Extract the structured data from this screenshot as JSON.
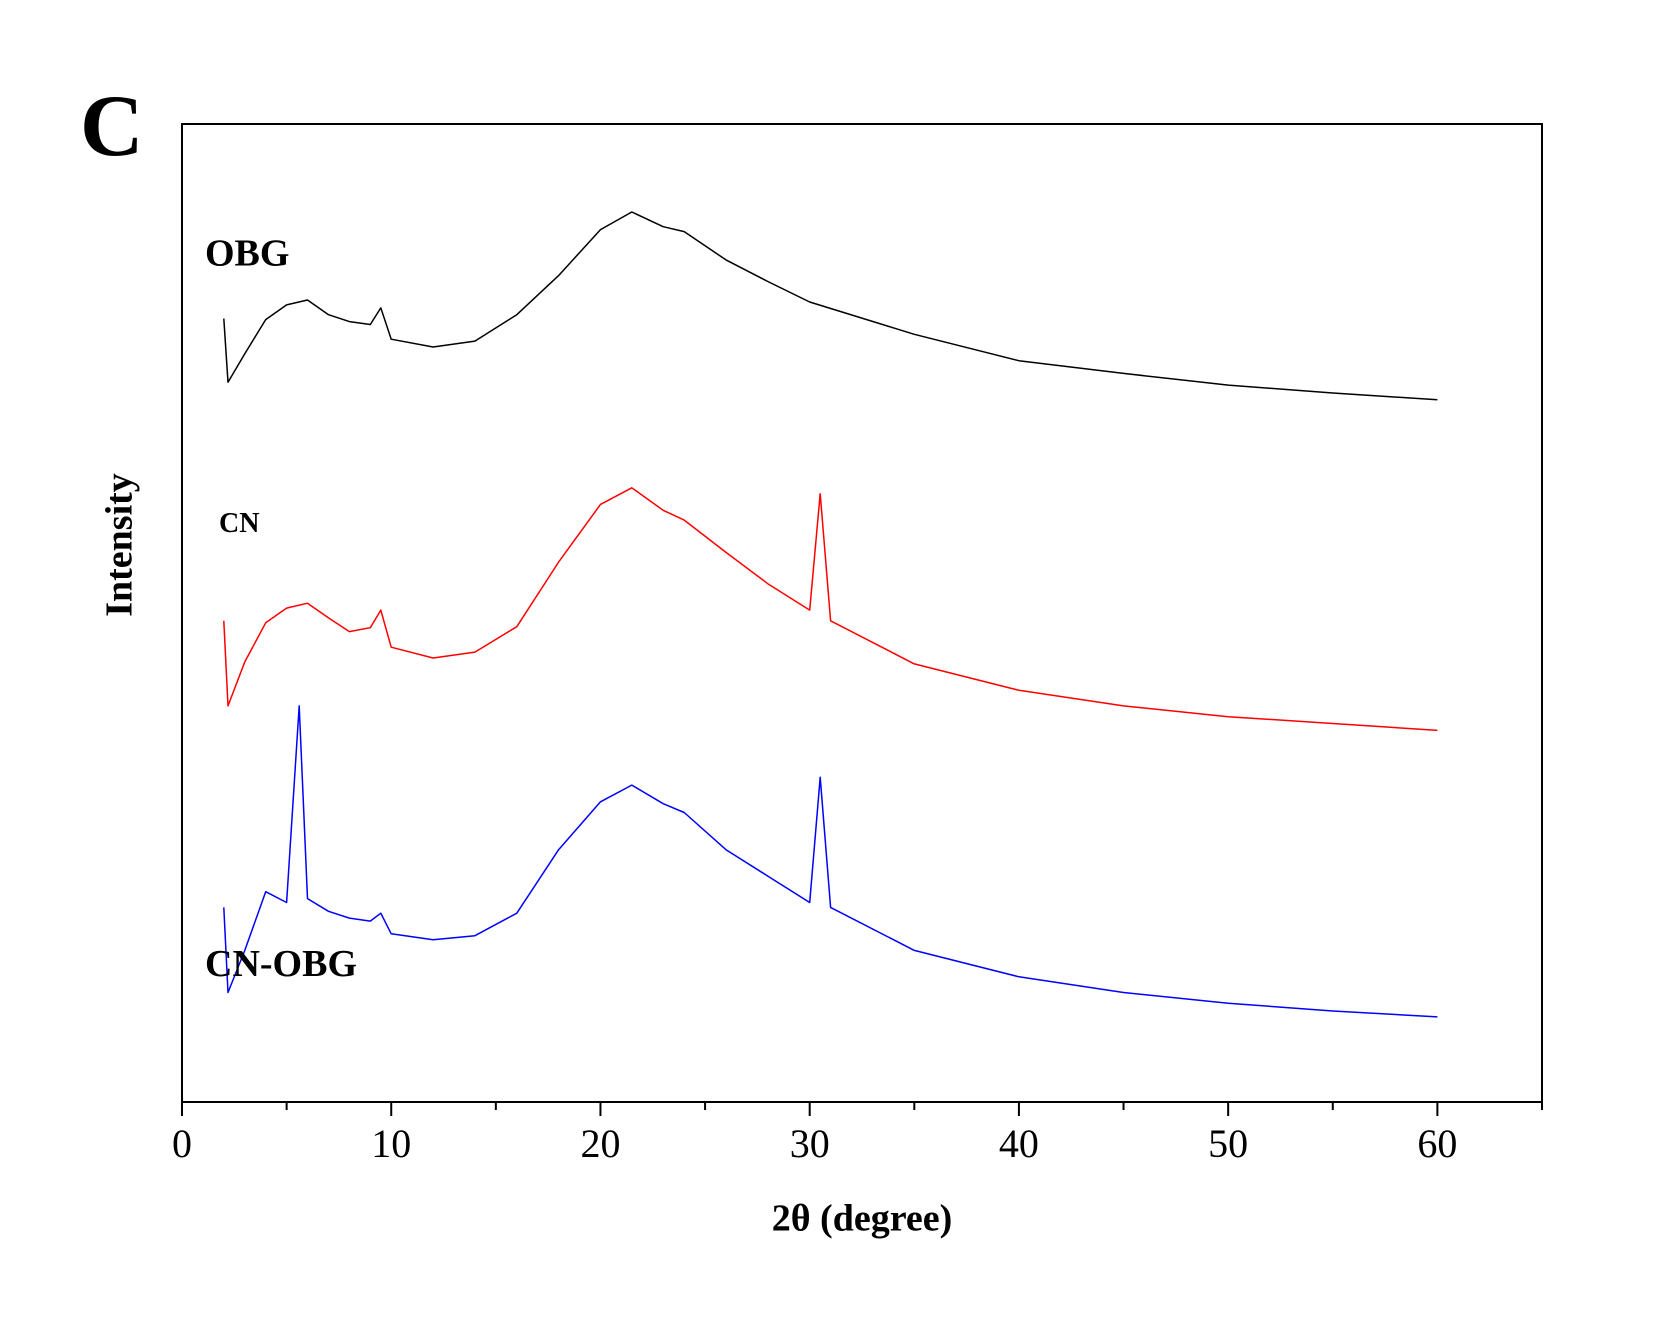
{
  "chart_data": {
    "type": "line",
    "panel_label": "C",
    "xlabel": "2θ (degree)",
    "ylabel": "Intensity",
    "xlim": [
      0,
      65
    ],
    "xticks": [
      0,
      10,
      20,
      30,
      40,
      50,
      60
    ],
    "xminorticks": [
      5,
      15,
      25,
      35,
      45,
      55,
      65
    ],
    "ylim": [
      0,
      100
    ],
    "series": [
      {
        "name": "OBG",
        "color": "#000000",
        "x": [
          2,
          2.2,
          3,
          4,
          5,
          6,
          7,
          8,
          9,
          9.5,
          10,
          12,
          14,
          16,
          18,
          20,
          21.5,
          23,
          24,
          26,
          28,
          30,
          35,
          40,
          45,
          50,
          55,
          60
        ],
        "values": [
          80.1,
          73.6,
          76.5,
          80.0,
          81.5,
          82.0,
          80.5,
          79.8,
          79.5,
          81.2,
          78.0,
          77.2,
          77.8,
          80.5,
          84.5,
          89.2,
          91.0,
          89.5,
          89.0,
          86.1,
          83.9,
          81.8,
          78.5,
          75.8,
          74.5,
          73.3,
          72.5,
          71.8
        ]
      },
      {
        "name": "CN",
        "color": "#ff0000",
        "x": [
          2,
          2.2,
          3,
          4,
          5,
          6,
          7,
          8,
          9,
          9.5,
          10,
          12,
          14,
          16,
          18,
          20,
          21.5,
          23,
          24,
          26,
          28,
          30,
          30.5,
          31,
          35,
          40,
          45,
          50,
          55,
          60
        ],
        "values": [
          49.2,
          40.5,
          45.0,
          49.0,
          50.5,
          51.0,
          49.5,
          48.1,
          48.5,
          50.3,
          46.5,
          45.4,
          46.0,
          48.6,
          55.2,
          61.1,
          62.8,
          60.5,
          59.5,
          56.2,
          53.0,
          50.3,
          62.2,
          49.2,
          44.8,
          42.1,
          40.5,
          39.4,
          38.7,
          38.0
        ]
      },
      {
        "name": "CN-OBG",
        "color": "#0000ff",
        "x": [
          2,
          2.2,
          3,
          4,
          5,
          5.6,
          6,
          7,
          8,
          9,
          9.5,
          10,
          12,
          14,
          16,
          18,
          20,
          21.5,
          23,
          24,
          26,
          28,
          30,
          30.5,
          31,
          35,
          40,
          45,
          50,
          55,
          60
        ],
        "values": [
          19.9,
          11.2,
          15.5,
          21.5,
          20.4,
          40.5,
          20.8,
          19.5,
          18.8,
          18.5,
          19.3,
          17.2,
          16.6,
          17.0,
          19.3,
          25.8,
          30.7,
          32.4,
          30.5,
          29.6,
          25.8,
          23.1,
          20.4,
          33.2,
          19.9,
          15.5,
          12.8,
          11.2,
          10.1,
          9.3,
          8.7
        ]
      }
    ]
  }
}
